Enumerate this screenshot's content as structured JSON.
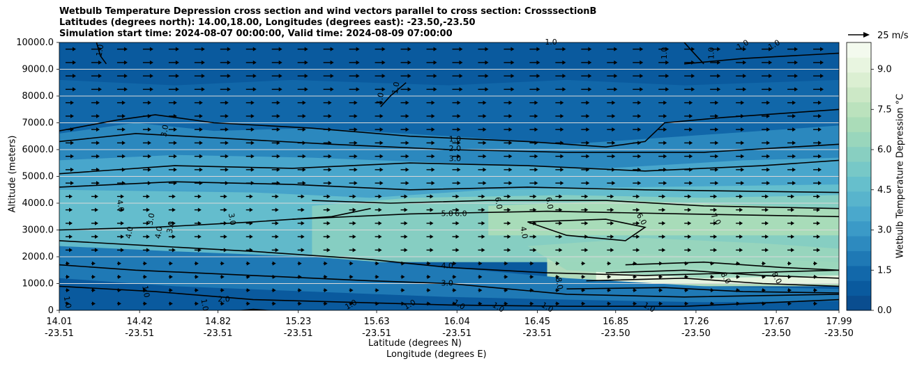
{
  "title_lines": [
    "Wetbulb Temperature Depression cross section and wind vectors parallel to cross section: CrosssectionB",
    "Latitudes (degrees north): 14.00,18.00, Longitudes (degrees east): -23.50,-23.50",
    "Simulation start time: 2024-08-07 00:00:00, Valid time: 2024-08-09 07:00:00"
  ],
  "chart_data": {
    "type": "heatmap",
    "title": "Wetbulb Temperature Depression cross section and wind vectors parallel to cross section: CrosssectionB",
    "ylabel": "Altitude (meters)",
    "xlabel_lines": [
      "Latitude (degrees N)",
      "Longitude (degrees E)"
    ],
    "ylim": [
      0,
      10000
    ],
    "y_ticks": [
      "0",
      "1000.0",
      "2000.0",
      "3000.0",
      "4000.0",
      "5000.0",
      "6000.0",
      "7000.0",
      "8000.0",
      "9000.0",
      "10000.0"
    ],
    "y_tick_values": [
      0,
      1000,
      2000,
      3000,
      4000,
      5000,
      6000,
      7000,
      8000,
      9000,
      10000
    ],
    "x_ticks": [
      {
        "lat": "14.01",
        "lon": "-23.51"
      },
      {
        "lat": "14.42",
        "lon": "-23.51"
      },
      {
        "lat": "14.82",
        "lon": "-23.51"
      },
      {
        "lat": "15.23",
        "lon": "-23.51"
      },
      {
        "lat": "15.63",
        "lon": "-23.51"
      },
      {
        "lat": "16.04",
        "lon": "-23.51"
      },
      {
        "lat": "16.45",
        "lon": "-23.51"
      },
      {
        "lat": "16.85",
        "lon": "-23.50"
      },
      {
        "lat": "17.26",
        "lon": "-23.50"
      },
      {
        "lat": "17.67",
        "lon": "-23.50"
      },
      {
        "lat": "17.99",
        "lon": "-23.50"
      }
    ],
    "grid": "horizontal",
    "colorbar": {
      "label": "Wetbulb Temperature Depression $^\\circ$C",
      "range": [
        0,
        10
      ],
      "ticks": [
        "0.0",
        "1.5",
        "3.0",
        "4.5",
        "6.0",
        "7.5",
        "9.0"
      ],
      "tick_values": [
        0,
        1.5,
        3.0,
        4.5,
        6.0,
        7.5,
        9.0
      ],
      "colors": [
        "#0a4d8f",
        "#0a5a9e",
        "#1268aa",
        "#1f79b5",
        "#2d8abf",
        "#3b9ac7",
        "#4aa8cc",
        "#58b4cc",
        "#66bfcc",
        "#77c8c7",
        "#88cfc1",
        "#99d6bc",
        "#aadcb8",
        "#bbe2bd",
        "#cce8c6",
        "#dbefd2",
        "#e8f5e0",
        "#f3faee"
      ]
    },
    "wind_key": {
      "label": "25 m/s",
      "speed": 25
    },
    "contour_labels": [
      {
        "text": "1.0",
        "lat": 14.22,
        "alt": 9700,
        "rot": -80
      },
      {
        "text": "3.0",
        "lat": 14.55,
        "alt": 6700,
        "rot": -80
      },
      {
        "text": "1.0",
        "lat": 15.65,
        "alt": 7900,
        "rot": -80
      },
      {
        "text": "1.0",
        "lat": 15.73,
        "alt": 8300,
        "rot": -80
      },
      {
        "text": "1.0",
        "lat": 16.03,
        "alt": 6380,
        "rot": 0
      },
      {
        "text": "2.0",
        "lat": 16.03,
        "alt": 6020,
        "rot": 0
      },
      {
        "text": "3.0",
        "lat": 16.03,
        "alt": 5650,
        "rot": 0
      },
      {
        "text": "4.0",
        "lat": 14.32,
        "alt": 3900,
        "rot": 80
      },
      {
        "text": "4.0",
        "lat": 14.37,
        "alt": 2900,
        "rot": -80
      },
      {
        "text": "3.0",
        "lat": 14.48,
        "alt": 3400,
        "rot": -80
      },
      {
        "text": "4.0",
        "lat": 14.52,
        "alt": 2900,
        "rot": -80
      },
      {
        "text": "3.0",
        "lat": 14.58,
        "alt": 3100,
        "rot": -80
      },
      {
        "text": "3.0",
        "lat": 14.89,
        "alt": 3400,
        "rot": 80
      },
      {
        "text": "5.0",
        "lat": 15.99,
        "alt": 3600,
        "rot": 0
      },
      {
        "text": "6.0",
        "lat": 16.06,
        "alt": 3600,
        "rot": 0
      },
      {
        "text": "6.0",
        "lat": 16.25,
        "alt": 4000,
        "rot": 80
      },
      {
        "text": "4.0",
        "lat": 16.38,
        "alt": 2900,
        "rot": 80
      },
      {
        "text": "6.0",
        "lat": 16.51,
        "alt": 4000,
        "rot": 80
      },
      {
        "text": "6.0",
        "lat": 16.98,
        "alt": 3400,
        "rot": 60
      },
      {
        "text": "7.0",
        "lat": 17.36,
        "alt": 3400,
        "rot": 60
      },
      {
        "text": "4.0",
        "lat": 15.99,
        "alt": 1650,
        "rot": 0
      },
      {
        "text": "3.0",
        "lat": 15.99,
        "alt": 1000,
        "rot": 0
      },
      {
        "text": "2.0",
        "lat": 14.85,
        "alt": 400,
        "rot": 0
      },
      {
        "text": "1.0",
        "lat": 14.05,
        "alt": 300,
        "rot": 80
      },
      {
        "text": "1.0",
        "lat": 14.45,
        "alt": 700,
        "rot": 80
      },
      {
        "text": "1.0",
        "lat": 14.75,
        "alt": 200,
        "rot": 80
      },
      {
        "text": "1.0",
        "lat": 15.5,
        "alt": 200,
        "rot": -30
      },
      {
        "text": "1.0",
        "lat": 15.8,
        "alt": 200,
        "rot": -30
      },
      {
        "text": "1.0",
        "lat": 16.05,
        "alt": 200,
        "rot": 30
      },
      {
        "text": "1.0",
        "lat": 16.25,
        "alt": 100,
        "rot": 30
      },
      {
        "text": "1.0",
        "lat": 16.5,
        "alt": 100,
        "rot": 30
      },
      {
        "text": "8.0",
        "lat": 16.56,
        "alt": 1000,
        "rot": 80
      },
      {
        "text": "8.0",
        "lat": 17.41,
        "alt": 1200,
        "rot": 60
      },
      {
        "text": "8.0",
        "lat": 17.67,
        "alt": 1200,
        "rot": 60
      },
      {
        "text": "1.0",
        "lat": 17.02,
        "alt": 100,
        "rot": 30
      },
      {
        "text": "1.0",
        "lat": 17.1,
        "alt": 9600,
        "rot": -90
      },
      {
        "text": "1.0",
        "lat": 17.34,
        "alt": 9600,
        "rot": -90
      },
      {
        "text": "1.0",
        "lat": 16.52,
        "alt": 10000,
        "rot": 0
      },
      {
        "text": "1.0",
        "lat": 17.5,
        "alt": 9900,
        "rot": -30
      },
      {
        "text": "1.0",
        "lat": 17.66,
        "alt": 9900,
        "rot": -30
      }
    ]
  }
}
